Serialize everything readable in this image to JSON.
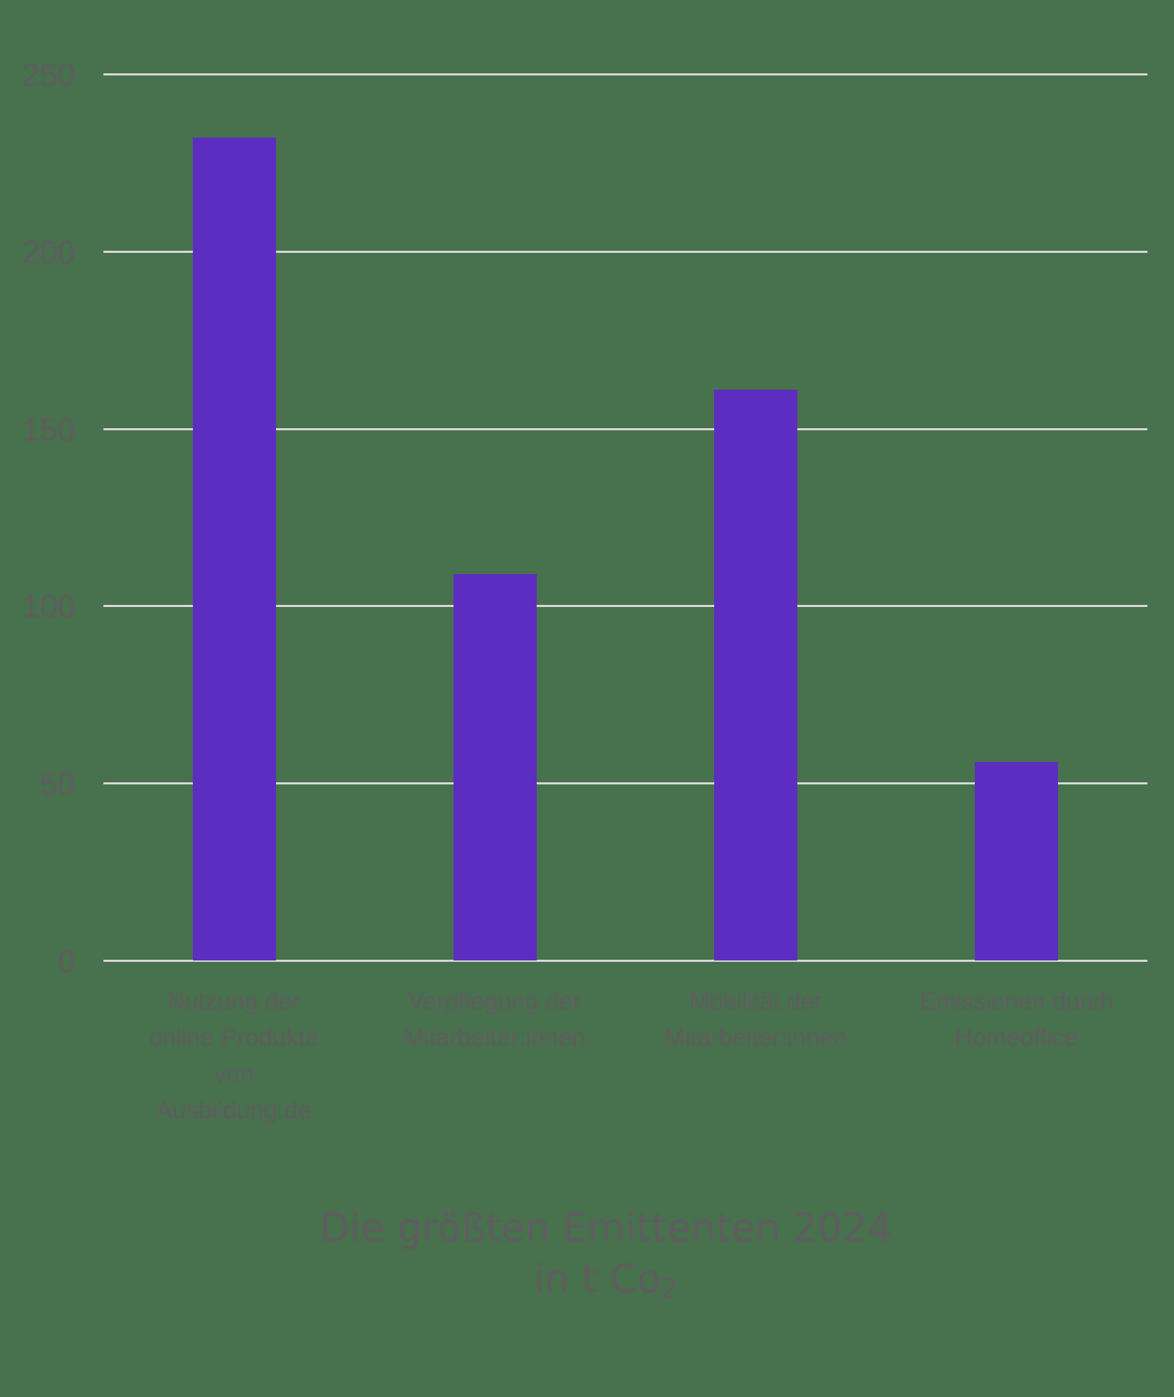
{
  "chart_data": {
    "type": "bar",
    "title": "Die größten Emittenten 2024\nin t Co₂",
    "title_lines": [
      "Die größten Emittenten 2024",
      "in t Co",
      "2"
    ],
    "categories": [
      "Nutzung der online Produkte von Ausbildung.de",
      "Verpflegung der Mitarbeiter:innen",
      "Mobilität der Mitarbeiter:innen",
      "Emissionen durch Homeoffice"
    ],
    "category_labels_wrapped": [
      "Nutzung der\nonline Produkte\nvon\nAusbildung.de",
      "Verpflegung der\nMitarbeiter:innen",
      "Mobilität der\nMitarbeiter:innen",
      "Emissionen durch\nHomeoffice"
    ],
    "values": [
      232,
      109,
      161,
      56
    ],
    "xlabel": "",
    "ylabel": "",
    "ylim": [
      0,
      250
    ],
    "yticks": [
      "0",
      "50",
      "100",
      "150",
      "200",
      "250"
    ],
    "grid": true,
    "legend": "none",
    "colors": {
      "background": "#48714d",
      "bar": "#5c2dc0",
      "grid": "#d9d9d9",
      "text": "#5f5d60"
    }
  }
}
